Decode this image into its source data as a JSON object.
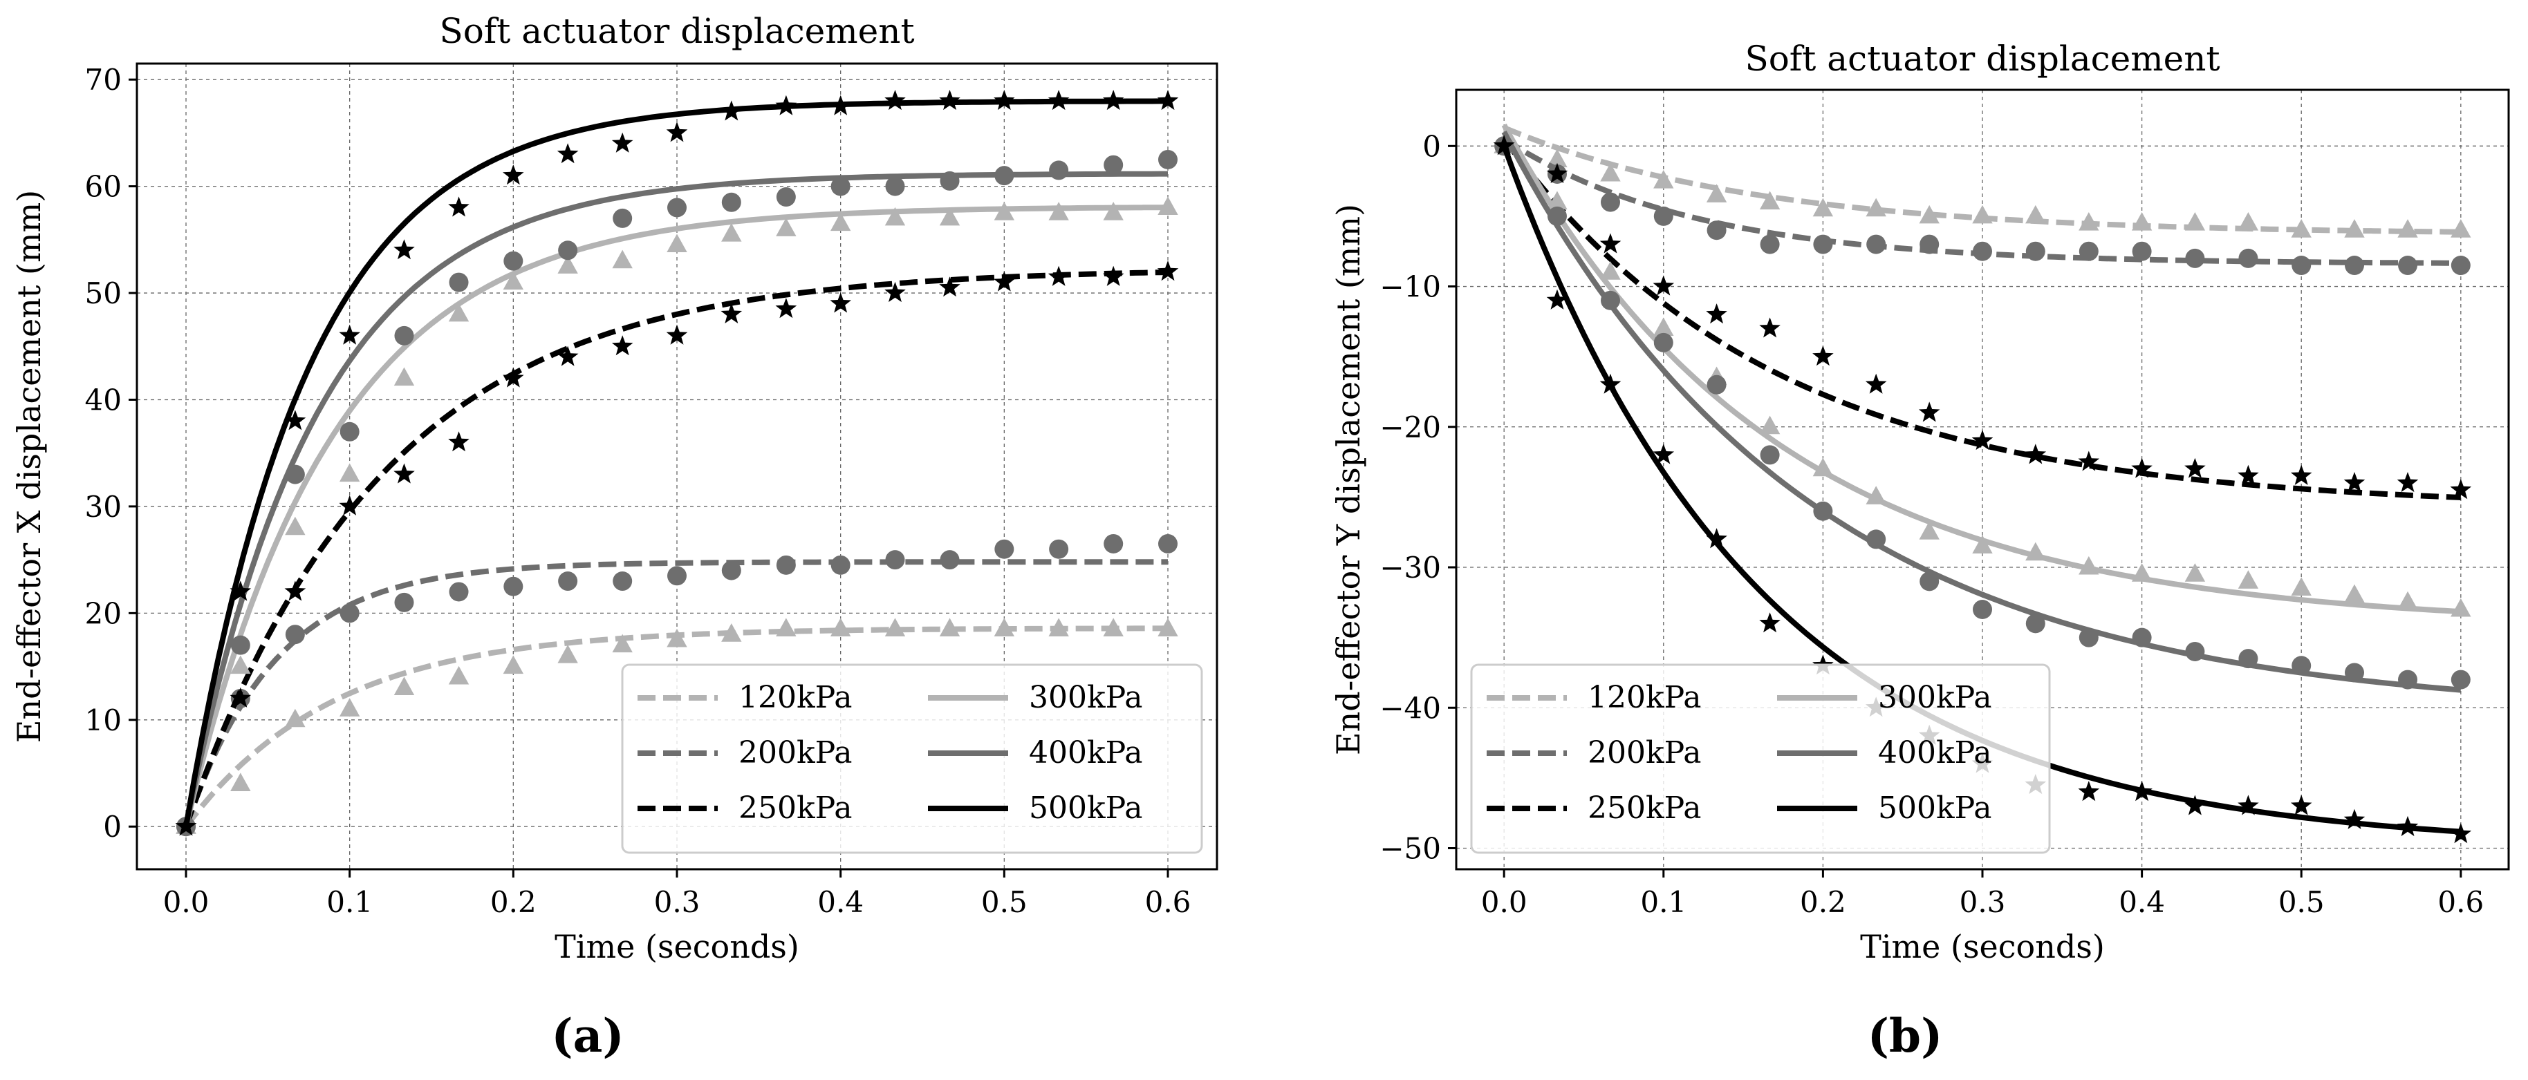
{
  "figure": {
    "panel_labels": [
      "(a)",
      "(b)"
    ],
    "colors": {
      "120kPa": "#b3b3b3",
      "200kPa": "#6e6e6e",
      "250kPa": "#000000",
      "300kPa": "#b3b3b3",
      "400kPa": "#6e6e6e",
      "500kPa": "#000000"
    }
  },
  "chart_data": [
    {
      "type": "line",
      "title": "Soft actuator displacement",
      "xlabel": "Time (seconds)",
      "ylabel": "End-effector X displacement (mm)",
      "xlim": [
        -0.03,
        0.63
      ],
      "ylim": [
        -4,
        71.5
      ],
      "xticks": [
        0.0,
        0.1,
        0.2,
        0.3,
        0.4,
        0.5,
        0.6
      ],
      "xtick_labels": [
        "0.0",
        "0.1",
        "0.2",
        "0.3",
        "0.4",
        "0.5",
        "0.6"
      ],
      "yticks": [
        0,
        10,
        20,
        30,
        40,
        50,
        60,
        70
      ],
      "ytick_labels": [
        "0",
        "10",
        "20",
        "30",
        "40",
        "50",
        "60",
        "70"
      ],
      "legend_position": "bottom-right",
      "grid": true,
      "x": [
        0.0,
        0.0333,
        0.0667,
        0.1,
        0.1333,
        0.1667,
        0.2,
        0.2333,
        0.2667,
        0.3,
        0.3333,
        0.3667,
        0.4,
        0.4333,
        0.4667,
        0.5,
        0.5333,
        0.5667,
        0.6
      ],
      "series": [
        {
          "name": "120kPa",
          "style": "dashed",
          "marker": "triangle",
          "fit_final": 18.6,
          "fit_tau": 0.09,
          "points": [
            0,
            4,
            10,
            11,
            13,
            14,
            15,
            16,
            17,
            17.5,
            18,
            18.5,
            18.5,
            18.5,
            18.5,
            18.5,
            18.5,
            18.5,
            18.5
          ]
        },
        {
          "name": "200kPa",
          "style": "dashed",
          "marker": "circle",
          "fit_final": 24.8,
          "fit_tau": 0.055,
          "points": [
            0,
            12,
            18,
            20,
            21,
            22,
            22.5,
            23,
            23,
            23.5,
            24,
            24.5,
            24.5,
            25,
            25,
            26,
            26,
            26.5,
            26.5
          ]
        },
        {
          "name": "250kPa",
          "style": "dashed",
          "marker": "star",
          "fit_final": 52.3,
          "fit_tau": 0.12,
          "points": [
            0,
            12,
            22,
            30,
            33,
            36,
            42,
            44,
            45,
            46,
            48,
            48.5,
            49,
            50,
            50.5,
            51,
            51.5,
            51.5,
            52
          ]
        },
        {
          "name": "300kPa",
          "style": "solid",
          "marker": "triangle",
          "fit_final": 58.1,
          "fit_tau": 0.09,
          "points": [
            0,
            15,
            28,
            33,
            42,
            48,
            51,
            52.5,
            53,
            54.5,
            55.5,
            56,
            56.5,
            57,
            57,
            57.5,
            57.5,
            57.5,
            58
          ]
        },
        {
          "name": "400kPa",
          "style": "solid",
          "marker": "circle",
          "fit_final": 61.2,
          "fit_tau": 0.08,
          "points": [
            0,
            17,
            33,
            37,
            46,
            51,
            53,
            54,
            57,
            58,
            58.5,
            59,
            60,
            60,
            60.5,
            61,
            61.5,
            62,
            62.5
          ]
        },
        {
          "name": "500kPa",
          "style": "solid",
          "marker": "star",
          "fit_final": 68.0,
          "fit_tau": 0.075,
          "points": [
            0,
            22,
            38,
            46,
            54,
            58,
            61,
            63,
            64,
            65,
            67,
            67.5,
            67.5,
            68,
            68,
            68,
            68,
            68,
            68
          ]
        }
      ]
    },
    {
      "type": "line",
      "title": "Soft actuator displacement",
      "xlabel": "Time (seconds)",
      "ylabel": "End-effector Y displacement (mm)",
      "xlim": [
        -0.03,
        0.63
      ],
      "ylim": [
        -51.5,
        4.0
      ],
      "xticks": [
        0.0,
        0.1,
        0.2,
        0.3,
        0.4,
        0.5,
        0.6
      ],
      "xtick_labels": [
        "0.0",
        "0.1",
        "0.2",
        "0.3",
        "0.4",
        "0.5",
        "0.6"
      ],
      "yticks": [
        0,
        -10,
        -20,
        -30,
        -40,
        -50
      ],
      "ytick_labels": [
        "0",
        "−10",
        "−20",
        "−30",
        "−40",
        "−50"
      ],
      "legend_position": "bottom-left",
      "grid": true,
      "x": [
        0.0,
        0.0333,
        0.0667,
        0.1,
        0.1333,
        0.1667,
        0.2,
        0.2333,
        0.2667,
        0.3,
        0.3333,
        0.3667,
        0.4,
        0.4333,
        0.4667,
        0.5,
        0.5333,
        0.5667,
        0.6
      ],
      "series": [
        {
          "name": "120kPa",
          "style": "dashed",
          "marker": "triangle",
          "fit_final": -6.3,
          "fit_tau": 0.16,
          "fit_start": 1.3,
          "points": [
            0,
            -1,
            -2,
            -2.5,
            -3.5,
            -4,
            -4.5,
            -4.5,
            -5,
            -5,
            -5,
            -5.5,
            -5.5,
            -5.5,
            -5.5,
            -6,
            -6,
            -6,
            -6
          ]
        },
        {
          "name": "200kPa",
          "style": "dashed",
          "marker": "circle",
          "fit_final": -8.4,
          "fit_tau": 0.12,
          "fit_start": 0.5,
          "points": [
            0,
            -2,
            -4,
            -5,
            -6,
            -7,
            -7,
            -7,
            -7,
            -7.5,
            -7.5,
            -7.5,
            -7.5,
            -8,
            -8,
            -8.5,
            -8.5,
            -8.5,
            -8.5
          ]
        },
        {
          "name": "250kPa",
          "style": "dashed",
          "marker": "star",
          "fit_final": -25.8,
          "fit_tau": 0.17,
          "fit_start": 0.5,
          "points": [
            0,
            -2,
            -7,
            -10,
            -12,
            -13,
            -15,
            -17,
            -19,
            -21,
            -22,
            -22.5,
            -23,
            -23,
            -23.5,
            -23.5,
            -24,
            -24,
            -24.5
          ]
        },
        {
          "name": "300kPa",
          "style": "solid",
          "marker": "triangle",
          "fit_final": -34.2,
          "fit_tau": 0.17,
          "fit_start": 1.5,
          "points": [
            0,
            -4,
            -9,
            -13,
            -16.5,
            -20,
            -23,
            -25,
            -27.5,
            -28.5,
            -29,
            -30,
            -30.5,
            -30.5,
            -31,
            -31.5,
            -32,
            -32.5,
            -33
          ]
        },
        {
          "name": "400kPa",
          "style": "solid",
          "marker": "circle",
          "fit_final": -40.5,
          "fit_tau": 0.19,
          "fit_start": 1.0,
          "points": [
            0,
            -5,
            -11,
            -14,
            -17,
            -22,
            -26,
            -28,
            -31,
            -33,
            -34,
            -35,
            -35,
            -36,
            -36.5,
            -37,
            -37.5,
            -38,
            -38
          ]
        },
        {
          "name": "500kPa",
          "style": "solid",
          "marker": "star",
          "fit_final": -50.0,
          "fit_tau": 0.16,
          "fit_start": 0.0,
          "points": [
            0,
            -11,
            -17,
            -22,
            -28,
            -34,
            -37,
            -40,
            -42,
            -44,
            -45.5,
            -46,
            -46,
            -47,
            -47,
            -47,
            -48,
            -48.5,
            -49
          ]
        }
      ]
    }
  ]
}
